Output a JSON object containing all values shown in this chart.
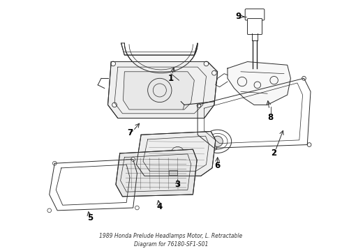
{
  "title": "1989 Honda Prelude Headlamps Motor, L. Retractable\nDiagram for 76180-SF1-S01",
  "background_color": "#ffffff",
  "line_color": "#2a2a2a",
  "label_color": "#000000",
  "figsize": [
    4.9,
    3.6
  ],
  "dpi": 100
}
